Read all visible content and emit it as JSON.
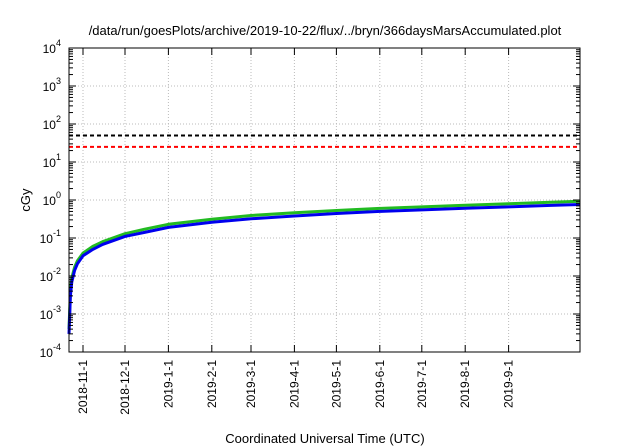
{
  "chart_data": {
    "type": "line",
    "title": "/data/run/goesPlots/archive/2019-10-22/flux/../bryn/366daysMarsAccumulated.plot",
    "xlabel": "Coordinated Universal Time (UTC)",
    "ylabel": "cGy",
    "y_scale": "log",
    "ylim": [
      0.0001,
      10000
    ],
    "xlim": [
      "2018-10-22",
      "2019-10-22"
    ],
    "grid": true,
    "y_ticks": [
      {
        "value": 0.0001,
        "base": "10",
        "exp": "-4"
      },
      {
        "value": 0.001,
        "base": "10",
        "exp": "-3"
      },
      {
        "value": 0.01,
        "base": "10",
        "exp": "-2"
      },
      {
        "value": 0.1,
        "base": "10",
        "exp": "-1"
      },
      {
        "value": 1,
        "base": "10",
        "exp": "0"
      },
      {
        "value": 10,
        "base": "10",
        "exp": "1"
      },
      {
        "value": 100,
        "base": "10",
        "exp": "2"
      },
      {
        "value": 1000,
        "base": "10",
        "exp": "3"
      },
      {
        "value": 10000,
        "base": "10",
        "exp": "4"
      }
    ],
    "x_ticks": [
      "2018-11-1",
      "2018-12-1",
      "2019-1-1",
      "2019-2-1",
      "2019-3-1",
      "2019-4-1",
      "2019-5-1",
      "2019-6-1",
      "2019-7-1",
      "2019-8-1",
      "2019-9-1"
    ],
    "reference_lines": [
      {
        "y": 50,
        "color": "#000000",
        "style": "dashed"
      },
      {
        "y": 25,
        "color": "#ff0000",
        "style": "dashed"
      }
    ],
    "series": [
      {
        "color": "#22bb22",
        "x": [
          "2018-10-22",
          "2018-10-23",
          "2018-10-24",
          "2018-10-26",
          "2018-10-28",
          "2018-11-01",
          "2018-11-08",
          "2018-11-15",
          "2018-12-01",
          "2018-12-15",
          "2019-01-01",
          "2019-02-01",
          "2019-03-01",
          "2019-04-01",
          "2019-05-01",
          "2019-06-01",
          "2019-07-01",
          "2019-08-01",
          "2019-09-01",
          "2019-10-01",
          "2019-10-22"
        ],
        "y": [
          0.0004,
          0.004,
          0.009,
          0.017,
          0.025,
          0.04,
          0.06,
          0.08,
          0.13,
          0.17,
          0.23,
          0.31,
          0.39,
          0.46,
          0.53,
          0.6,
          0.66,
          0.73,
          0.8,
          0.87,
          0.93
        ]
      },
      {
        "color": "#0000ee",
        "x": [
          "2018-10-22",
          "2018-10-23",
          "2018-10-24",
          "2018-10-26",
          "2018-10-28",
          "2018-11-01",
          "2018-11-08",
          "2018-11-15",
          "2018-12-01",
          "2018-12-15",
          "2019-01-01",
          "2019-02-01",
          "2019-03-01",
          "2019-04-01",
          "2019-05-01",
          "2019-06-01",
          "2019-07-01",
          "2019-08-01",
          "2019-09-01",
          "2019-10-01",
          "2019-10-22"
        ],
        "y": [
          0.0003,
          0.003,
          0.007,
          0.014,
          0.021,
          0.034,
          0.05,
          0.068,
          0.11,
          0.14,
          0.19,
          0.26,
          0.32,
          0.38,
          0.44,
          0.5,
          0.55,
          0.61,
          0.66,
          0.72,
          0.76
        ]
      }
    ]
  }
}
